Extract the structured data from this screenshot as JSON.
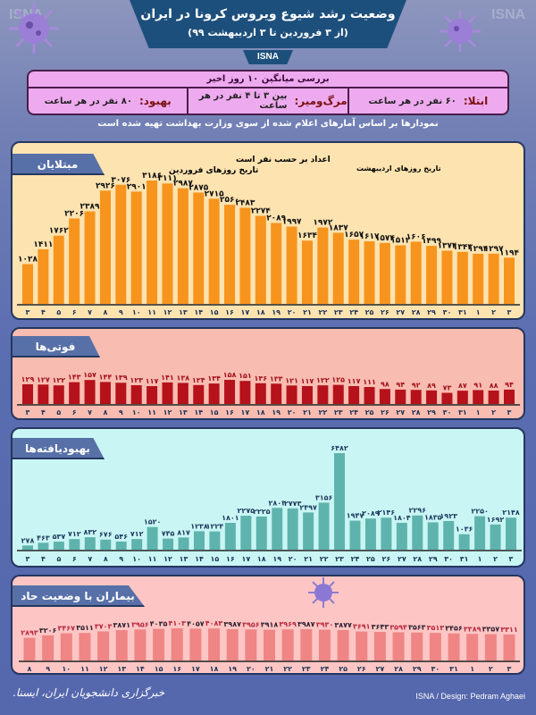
{
  "header": {
    "title": "وضعیت رشد شیوع ویروس کرونا در ایران",
    "subtitle": "(از ۳ فروردین تا ۳ اردیبهشت ۹۹)",
    "agency": "ISNA"
  },
  "summary": {
    "title": "بررسی میانگین ۱۰ روز اخیر",
    "items": [
      {
        "key": "ابتلا:",
        "value": "۶۰ نفر در هر ساعت"
      },
      {
        "key": "مرگ‌ومیر:",
        "value": "بین ۳ تا ۴ نفر در هر ساعت"
      },
      {
        "key": "بهبود:",
        "value": "۸۰ نفر در هر ساعت"
      }
    ]
  },
  "note": "نمودارها بر اساس آمارهای اعلام شده از سوی وزارت بهداشت تهیه شده است",
  "annotations": {
    "units": "اعداد بر حسب نفر است",
    "farvardin": "تاریخ روزهای فروردین",
    "ordibehesht": "تاریخ روزهای اردیبهشت"
  },
  "footer": {
    "logo": "خبرگزاری دانشجویان ایران، ایسنا.",
    "credit": "ISNA / Design: Pedram Aghaei",
    "watermark": "ISNA"
  },
  "colors": {
    "infected": "#f7941d",
    "deaths": "#b5121b",
    "recovered": "#5fb3ad",
    "critical": "#ef8585",
    "header": "#1d4f7c"
  },
  "chart_data": [
    {
      "type": "bar",
      "title": "مبتلایان",
      "categories": [
        "۳",
        "۴",
        "۵",
        "۶",
        "۷",
        "۸",
        "۹",
        "۱۰",
        "۱۱",
        "۱۲",
        "۱۳",
        "۱۴",
        "۱۵",
        "۱۶",
        "۱۷",
        "۱۸",
        "۱۹",
        "۲۰",
        "۲۱",
        "۲۲",
        "۲۳",
        "۲۴",
        "۲۵",
        "۲۶",
        "۲۷",
        "۲۸",
        "۲۹",
        "۳۰",
        "۳۱",
        "۱",
        "۲",
        "۳"
      ],
      "values": [
        1028,
        1411,
        1762,
        2206,
        2389,
        2926,
        3076,
        2901,
        3186,
        3111,
        2987,
        2875,
        2715,
        2560,
        2483,
        2274,
        2089,
        1997,
        1634,
        1972,
        1837,
        1657,
        1617,
        1574,
        1512,
        1606,
        1499,
        1374,
        1343,
        1294,
        1297,
        1194
      ]
    },
    {
      "type": "bar",
      "title": "فوتی‌ها",
      "categories": [
        "۳",
        "۴",
        "۵",
        "۶",
        "۷",
        "۸",
        "۹",
        "۱۰",
        "۱۱",
        "۱۲",
        "۱۳",
        "۱۴",
        "۱۵",
        "۱۶",
        "۱۷",
        "۱۸",
        "۱۹",
        "۲۰",
        "۲۱",
        "۲۲",
        "۲۳",
        "۲۴",
        "۲۵",
        "۲۶",
        "۲۷",
        "۲۸",
        "۲۹",
        "۳۰",
        "۳۱",
        "۱",
        "۲",
        "۳"
      ],
      "values": [
        129,
        127,
        122,
        143,
        157,
        144,
        139,
        123,
        117,
        141,
        138,
        124,
        134,
        158,
        151,
        136,
        133,
        121,
        117,
        122,
        125,
        117,
        111,
        98,
        94,
        92,
        89,
        73,
        87,
        91,
        88,
        94
      ]
    },
    {
      "type": "bar",
      "title": "بهبودیافته‌ها",
      "categories": [
        "۳",
        "۴",
        "۵",
        "۶",
        "۷",
        "۸",
        "۹",
        "۱۰",
        "۱۱",
        "۱۲",
        "۱۳",
        "۱۴",
        "۱۵",
        "۱۶",
        "۱۷",
        "۱۸",
        "۱۹",
        "۲۰",
        "۲۱",
        "۲۲",
        "۲۳",
        "۲۴",
        "۲۵",
        "۲۶",
        "۲۷",
        "۲۸",
        "۲۹",
        "۳۰",
        "۳۱",
        "۱",
        "۲",
        "۳"
      ],
      "values": [
        278,
        463,
        537,
        712,
        832,
        676,
        546,
        712,
        1520,
        745,
        817,
        1238,
        1224,
        1801,
        2275,
        2225,
        2803,
        2773,
        2497,
        3156,
        6482,
        1947,
        2089,
        2146,
        1804,
        2296,
        1835,
        1923,
        1036,
        2250,
        1692,
        2148
      ]
    },
    {
      "type": "bar",
      "title": "بیماران با وضعیت حاد",
      "categories": [
        "۸",
        "۹",
        "۱۰",
        "۱۱",
        "۱۲",
        "۱۳",
        "۱۴",
        "۱۵",
        "۱۶",
        "۱۷",
        "۱۸",
        "۱۹",
        "۲۰",
        "۲۱",
        "۲۲",
        "۲۳",
        "۲۴",
        "۲۵",
        "۲۶",
        "۲۷",
        "۲۸",
        "۲۹",
        "۳۰",
        "۳۱",
        "۱",
        "۲",
        "۳"
      ],
      "values": [
        2893,
        3206,
        3467,
        3511,
        3703,
        3871,
        3956,
        4035,
        4103,
        4057,
        4083,
        3987,
        3956,
        3918,
        3969,
        3987,
        3930,
        3877,
        3691,
        3643,
        3594,
        3563,
        3513,
        3456,
        3389,
        3357,
        3311
      ]
    }
  ]
}
